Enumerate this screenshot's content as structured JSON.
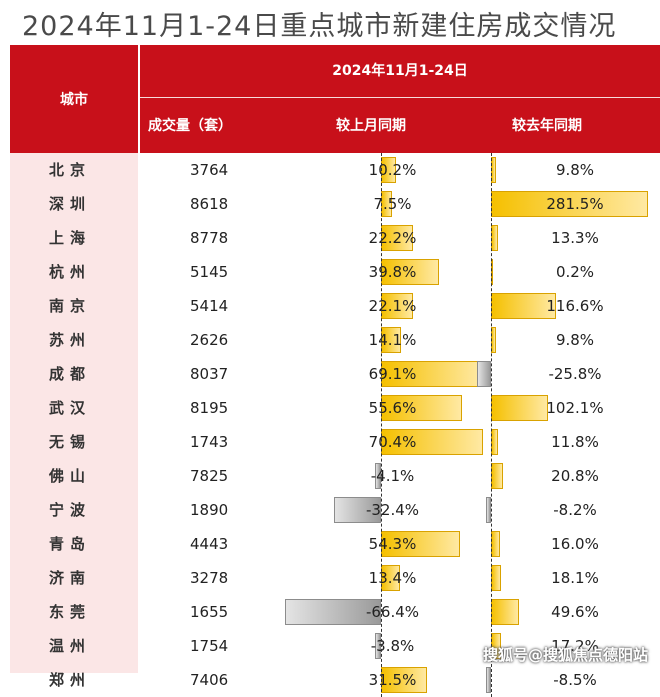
{
  "title": "2024年11月1-24日重点城市新建住房成交情况",
  "header": {
    "city": "城市",
    "date_range": "2024年11月1-24日",
    "volume": "成交量（套）",
    "mom": "较上月同期",
    "yoy": "较去年同期"
  },
  "watermark": "搜狐号@搜狐焦点德阳站",
  "chart_data": {
    "type": "table",
    "title": "2024年11月1-24日重点城市新建住房成交情况",
    "columns": [
      "城市",
      "成交量（套）",
      "较上月同期",
      "较去年同期"
    ],
    "rows": [
      {
        "city": "北京",
        "volume": "3764",
        "mom": 10.2,
        "mom_text": "10.2%",
        "yoy": 9.8,
        "yoy_text": "9.8%"
      },
      {
        "city": "深圳",
        "volume": "8618",
        "mom": 7.5,
        "mom_text": "7.5%",
        "yoy": 281.5,
        "yoy_text": "281.5%"
      },
      {
        "city": "上海",
        "volume": "8778",
        "mom": 22.2,
        "mom_text": "22.2%",
        "yoy": 13.3,
        "yoy_text": "13.3%"
      },
      {
        "city": "杭州",
        "volume": "5145",
        "mom": 39.8,
        "mom_text": "39.8%",
        "yoy": 0.2,
        "yoy_text": "0.2%"
      },
      {
        "city": "南京",
        "volume": "5414",
        "mom": 22.1,
        "mom_text": "22.1%",
        "yoy": 116.6,
        "yoy_text": "116.6%"
      },
      {
        "city": "苏州",
        "volume": "2626",
        "mom": 14.1,
        "mom_text": "14.1%",
        "yoy": 9.8,
        "yoy_text": "9.8%"
      },
      {
        "city": "成都",
        "volume": "8037",
        "mom": 69.1,
        "mom_text": "69.1%",
        "yoy": -25.8,
        "yoy_text": "-25.8%"
      },
      {
        "city": "武汉",
        "volume": "8195",
        "mom": 55.6,
        "mom_text": "55.6%",
        "yoy": 102.1,
        "yoy_text": "102.1%"
      },
      {
        "city": "无锡",
        "volume": "1743",
        "mom": 70.4,
        "mom_text": "70.4%",
        "yoy": 11.8,
        "yoy_text": "11.8%"
      },
      {
        "city": "佛山",
        "volume": "7825",
        "mom": -4.1,
        "mom_text": "-4.1%",
        "yoy": 20.8,
        "yoy_text": "20.8%"
      },
      {
        "city": "宁波",
        "volume": "1890",
        "mom": -32.4,
        "mom_text": "-32.4%",
        "yoy": -8.2,
        "yoy_text": "-8.2%"
      },
      {
        "city": "青岛",
        "volume": "4443",
        "mom": 54.3,
        "mom_text": "54.3%",
        "yoy": 16.0,
        "yoy_text": "16.0%"
      },
      {
        "city": "济南",
        "volume": "3278",
        "mom": 13.4,
        "mom_text": "13.4%",
        "yoy": 18.1,
        "yoy_text": "18.1%"
      },
      {
        "city": "东莞",
        "volume": "1655",
        "mom": -66.4,
        "mom_text": "-66.4%",
        "yoy": 49.6,
        "yoy_text": "49.6%"
      },
      {
        "city": "温州",
        "volume": "1754",
        "mom": -3.8,
        "mom_text": "-3.8%",
        "yoy": 17.2,
        "yoy_text": "17.2%"
      },
      {
        "city": "郑州",
        "volume": "7406",
        "mom": 31.5,
        "mom_text": "31.5%",
        "yoy": -8.5,
        "yoy_text": "-8.5%"
      }
    ]
  }
}
